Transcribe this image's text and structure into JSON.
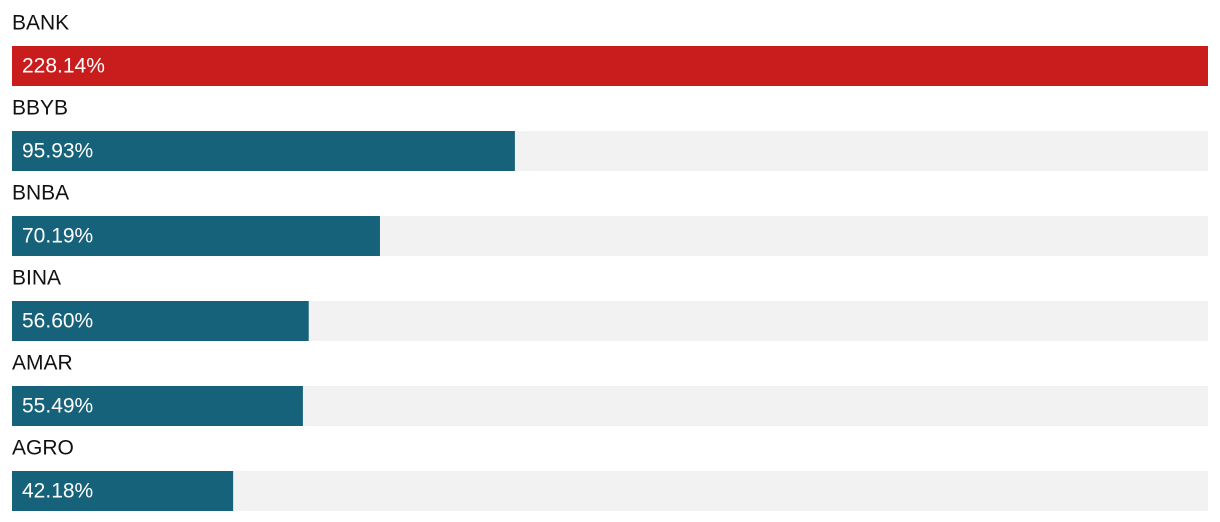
{
  "chart_data": {
    "type": "hbar",
    "categories": [
      "BANK",
      "BBYB",
      "BNBA",
      "BINA",
      "AMAR",
      "AGRO"
    ],
    "values": [
      228.14,
      95.93,
      70.19,
      56.6,
      55.49,
      42.18
    ],
    "value_labels": [
      "228.14%",
      "95.93%",
      "70.19%",
      "56.60%",
      "55.49%",
      "42.18%"
    ],
    "colors": [
      "#c91d1d",
      "#16627a",
      "#16627a",
      "#16627a",
      "#16627a",
      "#16627a"
    ],
    "track_color": "#f2f2f2"
  }
}
